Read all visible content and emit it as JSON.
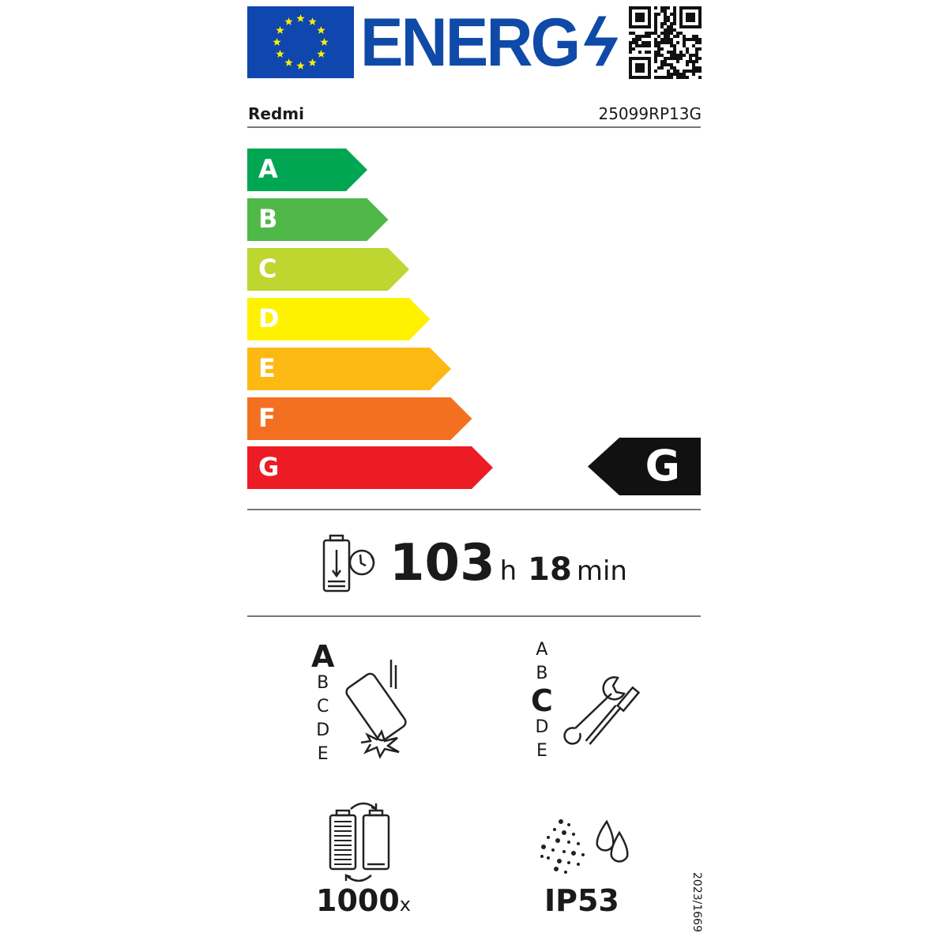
{
  "header": {
    "logo_text": "ENERG",
    "brand": "Redmi",
    "model": "25099RP13G"
  },
  "energy_scale": {
    "classes": [
      {
        "letter": "A",
        "color": "#00a651"
      },
      {
        "letter": "B",
        "color": "#50b848"
      },
      {
        "letter": "C",
        "color": "#bed630"
      },
      {
        "letter": "D",
        "color": "#fff200"
      },
      {
        "letter": "E",
        "color": "#fdb913"
      },
      {
        "letter": "F",
        "color": "#f37021"
      },
      {
        "letter": "G",
        "color": "#ed1c24"
      }
    ],
    "rating": "G"
  },
  "battery_endurance": {
    "hours": "103",
    "hours_unit": "h",
    "minutes": "18",
    "minutes_unit": "min",
    "icon": "battery-clock-icon"
  },
  "drop_resistance": {
    "scale": [
      "A",
      "B",
      "C",
      "D",
      "E"
    ],
    "rating": "A",
    "icon": "dropping-phone-icon"
  },
  "repairability": {
    "scale": [
      "A",
      "B",
      "C",
      "D",
      "E"
    ],
    "rating": "C",
    "icon": "wrench-screwdriver-icon"
  },
  "battery_cycles": {
    "value": "1000",
    "unit": "x",
    "icon": "battery-cycle-icon"
  },
  "ingress_protection": {
    "value": "IP53",
    "icon": "dust-water-icon"
  },
  "regulation": "2023/1669"
}
